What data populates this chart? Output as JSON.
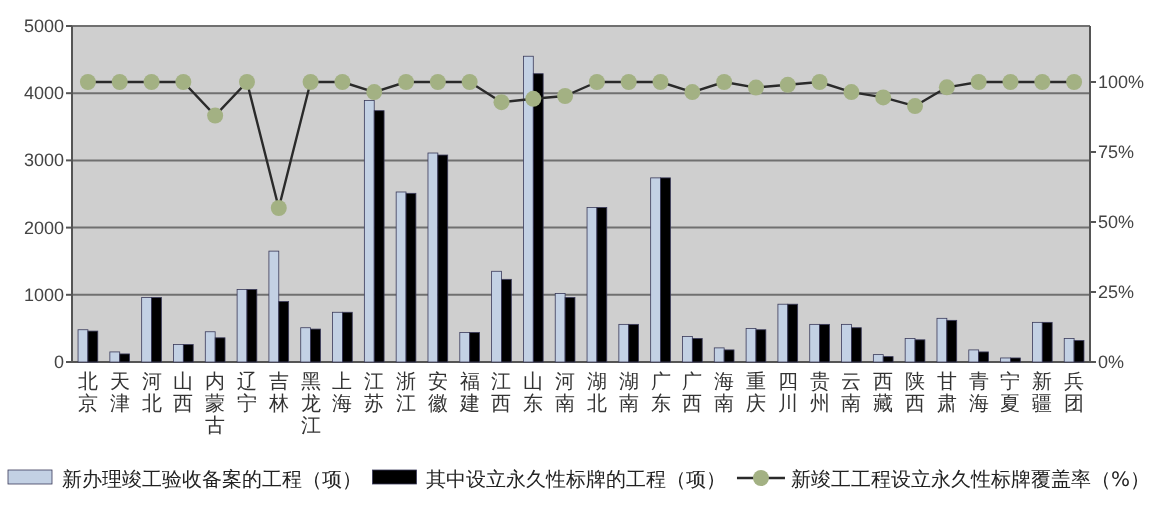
{
  "chart_data": {
    "type": "bar",
    "categories": [
      "北京",
      "天津",
      "河北",
      "山西",
      "内蒙古",
      "辽宁",
      "吉林",
      "黑龙江",
      "上海",
      "江苏",
      "浙江",
      "安徽",
      "福建",
      "江西",
      "山东",
      "河南",
      "湖北",
      "湖南",
      "广东",
      "广西",
      "海南",
      "重庆",
      "四川",
      "贵州",
      "云南",
      "西藏",
      "陕西",
      "甘肃",
      "青海",
      "宁夏",
      "新疆",
      "兵团"
    ],
    "series": [
      {
        "name": "新办理竣工验收备案的工程（项）",
        "color": "#c3d1e4",
        "values": [
          480,
          150,
          960,
          260,
          450,
          1080,
          1650,
          510,
          740,
          3890,
          2530,
          3110,
          440,
          1350,
          4550,
          1020,
          2300,
          560,
          2740,
          380,
          210,
          500,
          860,
          560,
          560,
          110,
          350,
          650,
          180,
          60,
          590,
          350
        ]
      },
      {
        "name": "其中设立永久性标牌的工程（项）",
        "color": "#000000",
        "values": [
          460,
          120,
          960,
          260,
          360,
          1080,
          900,
          490,
          740,
          3740,
          2510,
          3080,
          440,
          1230,
          4290,
          960,
          2300,
          560,
          2740,
          350,
          180,
          480,
          860,
          560,
          510,
          80,
          330,
          620,
          150,
          60,
          590,
          320
        ]
      },
      {
        "name": "新竣工工程设立永久性标牌覆盖率（%）",
        "color": "#a3b183",
        "type": "line",
        "axis": "y2",
        "values": [
          100,
          100,
          100,
          100,
          88,
          100,
          55,
          100,
          100,
          96.4,
          100,
          100,
          100,
          92.8,
          94,
          95,
          100,
          100,
          100,
          96.4,
          100,
          98,
          99,
          100,
          96.4,
          94.5,
          91.4,
          98.1,
          100,
          100,
          100,
          100
        ]
      }
    ],
    "ylim": [
      0,
      5000
    ],
    "yticks": [
      0,
      1000,
      2000,
      3000,
      4000,
      5000
    ],
    "y2lim": [
      0,
      120
    ],
    "y2ticks": [
      {
        "value": 0,
        "label": "0%"
      },
      {
        "value": 25,
        "label": "25%"
      },
      {
        "value": 50,
        "label": "50%"
      },
      {
        "value": 75,
        "label": "75%"
      },
      {
        "value": 100,
        "label": "100%"
      }
    ],
    "grid": "y",
    "legend": "bottom",
    "marker": "circle"
  }
}
